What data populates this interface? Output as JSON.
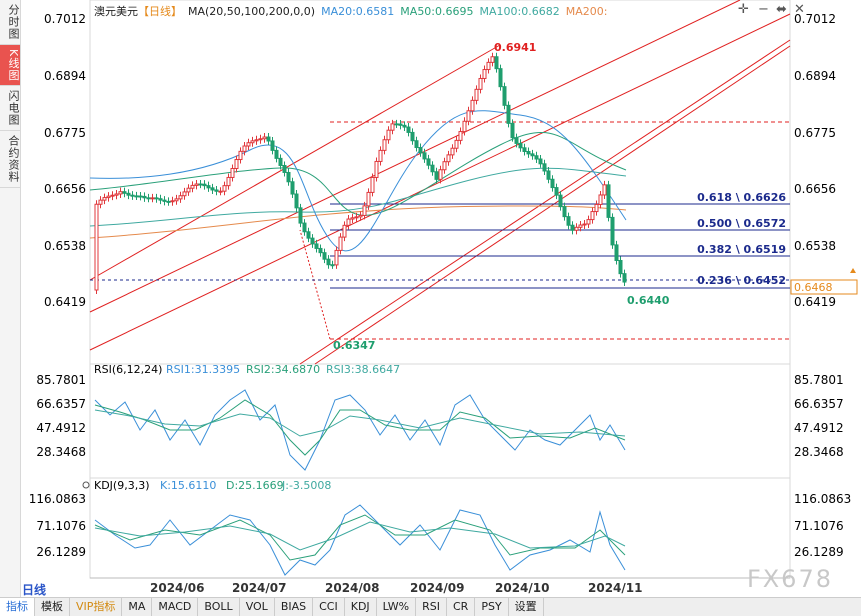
{
  "left_tabs": [
    "分时图",
    "K线图",
    "闪电图",
    "合约资料"
  ],
  "active_left_tab": 1,
  "header": {
    "symbol": "澳元美元",
    "period_tag": "【日线】",
    "ma_label": "MA(20,50,100,200,0,0)",
    "ma20": "MA20:0.6581",
    "ma50": "MA50:0.6695",
    "ma100": "MA100:0.6682",
    "ma200": "MA200:"
  },
  "price_axis": [
    "0.7012",
    "0.6894",
    "0.6775",
    "0.6656",
    "0.6538",
    "0.6419"
  ],
  "current_price": "0.6468",
  "fib_levels": [
    {
      "label": "0.618 \\ 0.6626",
      "price": 0.6626
    },
    {
      "label": "0.500 \\ 0.6572",
      "price": 0.6572
    },
    {
      "label": "0.382 \\ 0.6519",
      "price": 0.6519
    },
    {
      "label": "0.236 \\ 0.6452",
      "price": 0.6452
    }
  ],
  "annotations": {
    "high": "0.6941",
    "low": "0.6347",
    "last_low": "0.6440"
  },
  "rsi": {
    "title": "RSI(6,12,24)",
    "rsi1": "RSI1:31.3395",
    "rsi2": "RSI2:34.6870",
    "rsi3": "RSI3:38.6647",
    "axis": [
      "85.7801",
      "66.6357",
      "47.4912",
      "28.3468"
    ]
  },
  "kdj": {
    "title": "KDJ(9,3,3)",
    "k": "K:15.6110",
    "d": "D:25.1669",
    "j": "J:-3.5008",
    "axis": [
      "116.0863",
      "71.1076",
      "26.1289"
    ]
  },
  "date_axis": [
    "2024/06",
    "2024/07",
    "2024/08",
    "2024/09",
    "2024/10",
    "2024/11"
  ],
  "period_label": "日线",
  "toolbar": [
    "指标",
    "模板",
    "VIP指标",
    "MA",
    "MACD",
    "BOLL",
    "VOL",
    "BIAS",
    "CCI",
    "KDJ",
    "LW%",
    "RSI",
    "CR",
    "PSY",
    "设置"
  ],
  "toolbar_active": 0,
  "watermark": "FX678",
  "colors": {
    "up": "#e0383c",
    "down": "#1f9e6e",
    "ma20": "#3a8fd8",
    "ma50": "#2aa07a",
    "ma100": "#3fa9a0",
    "ma200": "#e58a4c",
    "channel": "#e02020",
    "fib": "#1b2a8c"
  }
}
